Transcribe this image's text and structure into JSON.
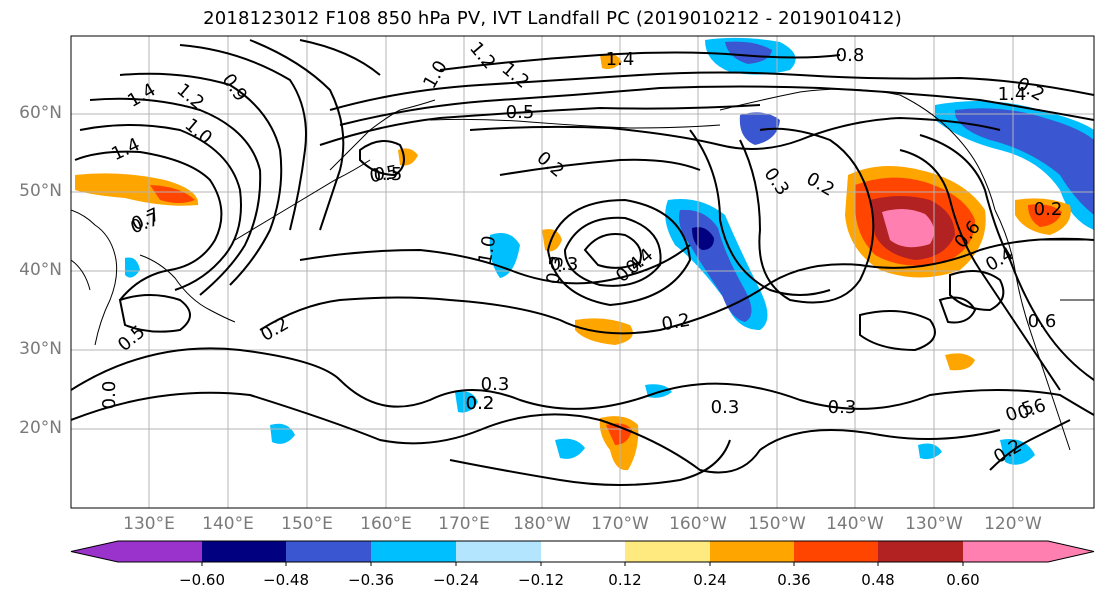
{
  "title": "2018123012 F108 850 hPa PV, IVT Landfall PC (2019010212 - 2019010412)",
  "map": {
    "lat_ticks": [
      "60°N",
      "50°N",
      "40°N",
      "30°N",
      "20°N"
    ],
    "lon_ticks": [
      "130°E",
      "140°E",
      "150°E",
      "160°E",
      "170°E",
      "180°W",
      "170°W",
      "160°W",
      "150°W",
      "140°W",
      "130°W",
      "120°W"
    ],
    "contour_labels": [
      "1.4",
      "1.2",
      "0.8",
      "1.4",
      "1.4",
      "1.4",
      "1.2",
      "1.0",
      "0.7",
      "0.9",
      "0.5",
      "0.5",
      "0.2",
      "0.3",
      "0.3",
      "0.2",
      "0.4",
      "0.2",
      "1.2",
      "0.2",
      "0.3",
      "0.3",
      "0.5",
      "0.6",
      "0.6",
      "0.3",
      "0.2",
      "0.4",
      "0.4",
      "0.2",
      "0.5",
      "0.6",
      "1.0",
      "1.0",
      "0.3",
      "0.2",
      "0.2",
      "0.2",
      "0.7",
      "0.5",
      "0.0"
    ]
  },
  "colorbar": {
    "colors": [
      "#9933cc",
      "#000080",
      "#3a56d0",
      "#00bfff",
      "#b3e5ff",
      "#ffffff",
      "#ffea80",
      "#ffa500",
      "#ff4500",
      "#b22222",
      "#ff80b0"
    ],
    "tick_labels": [
      "−0.60",
      "−0.48",
      "−0.36",
      "−0.24",
      "−0.12",
      "0.12",
      "0.24",
      "0.36",
      "0.48",
      "0.60"
    ]
  }
}
